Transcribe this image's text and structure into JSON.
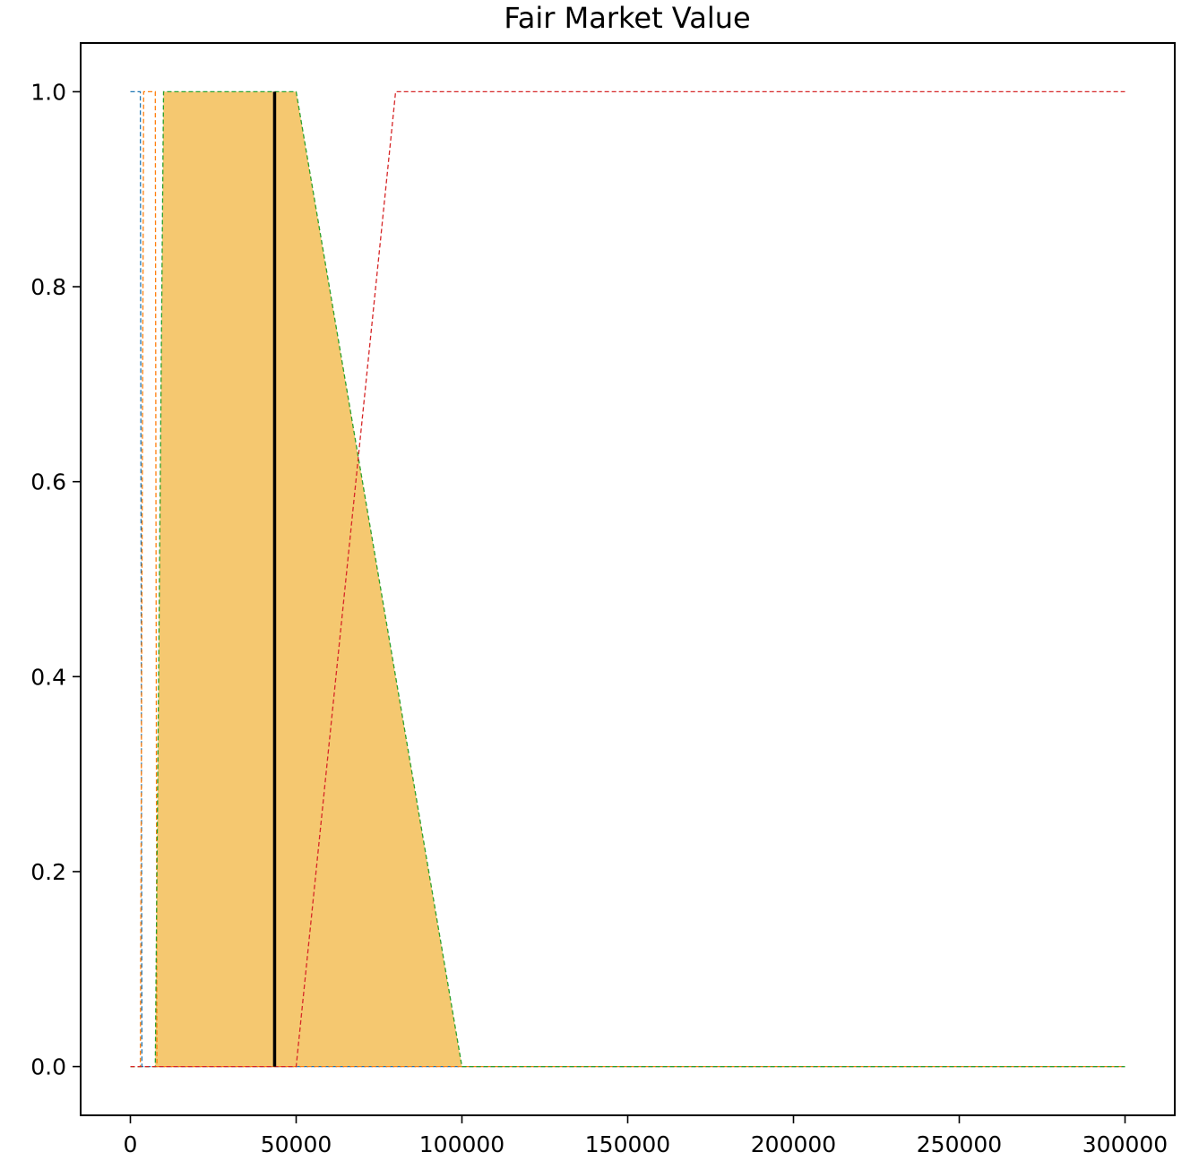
{
  "chart_data": {
    "type": "line",
    "title": "Fair Market Value",
    "xlabel": "",
    "ylabel": "",
    "xlim": [
      -15000,
      315000
    ],
    "ylim": [
      -0.05,
      1.05
    ],
    "x_ticks": [
      0,
      50000,
      100000,
      150000,
      200000,
      250000,
      300000
    ],
    "y_ticks": [
      0.0,
      0.2,
      0.4,
      0.6,
      0.8,
      1.0
    ],
    "x_tick_labels": [
      "0",
      "50000",
      "100000",
      "150000",
      "200000",
      "250000",
      "300000"
    ],
    "y_tick_labels": [
      "0.0",
      "0.2",
      "0.4",
      "0.6",
      "0.8",
      "1.0"
    ],
    "grid": false,
    "series": [
      {
        "color": "#1f77b4",
        "style": "dashed",
        "x": [
          0,
          3000,
          3500,
          300000
        ],
        "y": [
          1,
          1,
          0,
          0
        ]
      },
      {
        "color": "#ff7f0e",
        "style": "dashed",
        "x": [
          0,
          3000,
          4000,
          7500,
          8000,
          300000
        ],
        "y": [
          0,
          0,
          1,
          1,
          0,
          0
        ]
      },
      {
        "color": "#2ca02c",
        "style": "dashed",
        "x": [
          0,
          7500,
          10000,
          50000,
          100000,
          300000
        ],
        "y": [
          0,
          0,
          1,
          1,
          0,
          0
        ]
      },
      {
        "color": "#d62728",
        "style": "dashed",
        "x": [
          0,
          50000,
          80000,
          300000
        ],
        "y": [
          0,
          0,
          1,
          1
        ]
      }
    ],
    "filled_area": {
      "color": "#f5c870",
      "x": [
        7500,
        10000,
        50000,
        100000
      ],
      "y": [
        0,
        1,
        1,
        0
      ]
    },
    "vertical_line": {
      "x": 43500,
      "y_range": [
        0,
        1
      ],
      "color": "#000000"
    }
  }
}
